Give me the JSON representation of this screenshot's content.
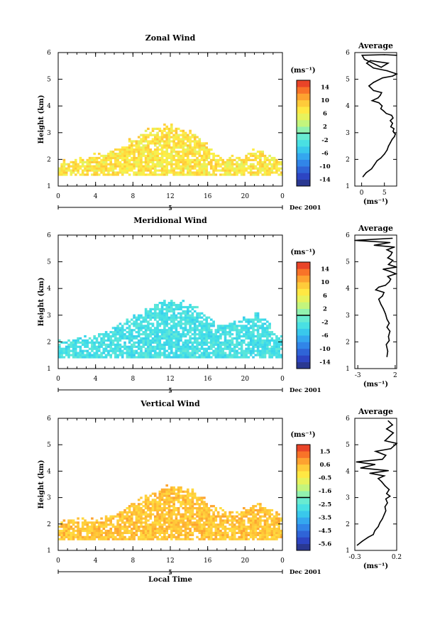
{
  "chart_data": [
    {
      "type": "heatmap",
      "title": "Zonal Wind",
      "ylabel": "Height (km)",
      "xlabel": "",
      "xlim": [
        0,
        24
      ],
      "ylim": [
        1,
        6
      ],
      "x_ticks": [
        "0",
        "4",
        "8",
        "12",
        "16",
        "20",
        "0"
      ],
      "y_ticks": [
        "1",
        "2",
        "3",
        "4",
        "5",
        "6"
      ],
      "date_ticks": [
        "5"
      ],
      "date_label": "Dec 2001",
      "colorbar": {
        "unit": "(ms⁻¹)",
        "min": -16,
        "max": 16,
        "labels": [
          "14",
          "10",
          "6",
          "2",
          "-2",
          "-6",
          "-10",
          "-14"
        ]
      },
      "field_summary": {
        "bulk_value": 7,
        "min": 2,
        "max": 14
      },
      "profile": {
        "title": "Average",
        "xlabel": "(ms⁻¹)",
        "xlim": [
          -1.5,
          7.7
        ],
        "x_ticks": [
          "0",
          "5"
        ],
        "y_ticks": [
          "1",
          "2",
          "3",
          "4",
          "5",
          "6"
        ],
        "points": [
          [
            0.3,
            1.35
          ],
          [
            1.0,
            1.5
          ],
          [
            2.2,
            1.65
          ],
          [
            2.8,
            1.8
          ],
          [
            3.4,
            1.95
          ],
          [
            4.2,
            2.05
          ],
          [
            5.0,
            2.2
          ],
          [
            5.6,
            2.35
          ],
          [
            5.9,
            2.5
          ],
          [
            6.3,
            2.62
          ],
          [
            6.7,
            2.75
          ],
          [
            7.2,
            2.85
          ],
          [
            7.4,
            2.95
          ],
          [
            6.9,
            3.05
          ],
          [
            7.1,
            3.15
          ],
          [
            6.4,
            3.22
          ],
          [
            6.8,
            3.35
          ],
          [
            6.3,
            3.45
          ],
          [
            6.9,
            3.55
          ],
          [
            6.6,
            3.65
          ],
          [
            5.4,
            3.72
          ],
          [
            4.8,
            3.82
          ],
          [
            4.2,
            3.9
          ],
          [
            4.5,
            4.0
          ],
          [
            3.8,
            4.12
          ],
          [
            2.3,
            4.2
          ],
          [
            3.6,
            4.3
          ],
          [
            4.1,
            4.4
          ],
          [
            4.4,
            4.5
          ],
          [
            2.6,
            4.58
          ],
          [
            1.6,
            4.75
          ],
          [
            2.6,
            4.88
          ],
          [
            4.6,
            5.05
          ],
          [
            6.8,
            5.12
          ],
          [
            7.7,
            5.2
          ],
          [
            5.6,
            5.32
          ],
          [
            2.6,
            5.42
          ],
          [
            1.1,
            5.6
          ],
          [
            1.9,
            5.7
          ],
          [
            5.8,
            5.6
          ],
          [
            4.3,
            5.45
          ],
          [
            0.6,
            5.75
          ],
          [
            0.1,
            5.9
          ],
          [
            5.0,
            5.92
          ],
          [
            7.7,
            5.9
          ]
        ]
      }
    },
    {
      "type": "heatmap",
      "title": "Meridional Wind",
      "ylabel": "Height (km)",
      "xlabel": "",
      "xlim": [
        0,
        24
      ],
      "ylim": [
        1,
        6
      ],
      "x_ticks": [
        "0",
        "4",
        "8",
        "12",
        "16",
        "20",
        "0"
      ],
      "y_ticks": [
        "1",
        "2",
        "3",
        "4",
        "5",
        "6"
      ],
      "date_ticks": [
        "5"
      ],
      "date_label": "Dec 2001",
      "colorbar": {
        "unit": "(ms⁻¹)",
        "min": -16,
        "max": 16,
        "labels": [
          "14",
          "10",
          "6",
          "2",
          "-2",
          "-6",
          "-10",
          "-14"
        ]
      },
      "field_summary": {
        "bulk_value": -3,
        "min": -6,
        "max": 2
      },
      "profile": {
        "title": "Average",
        "xlabel": "(ms⁻¹)",
        "xlim": [
          -3.4,
          2.2
        ],
        "x_ticks": [
          "-3",
          "2"
        ],
        "y_ticks": [
          "1",
          "2",
          "3",
          "4",
          "5",
          "6"
        ],
        "points": [
          [
            0.9,
            1.45
          ],
          [
            1.0,
            1.65
          ],
          [
            0.8,
            1.9
          ],
          [
            1.2,
            2.05
          ],
          [
            1.1,
            2.2
          ],
          [
            1.3,
            2.4
          ],
          [
            0.9,
            2.55
          ],
          [
            1.2,
            2.7
          ],
          [
            0.9,
            2.85
          ],
          [
            0.7,
            3.05
          ],
          [
            0.4,
            3.25
          ],
          [
            0.1,
            3.4
          ],
          [
            -0.2,
            3.6
          ],
          [
            0.3,
            3.72
          ],
          [
            0.5,
            3.85
          ],
          [
            -0.6,
            3.95
          ],
          [
            -0.2,
            4.05
          ],
          [
            0.7,
            4.12
          ],
          [
            1.2,
            4.25
          ],
          [
            1.4,
            4.35
          ],
          [
            1.0,
            4.45
          ],
          [
            2.1,
            4.55
          ],
          [
            1.2,
            4.65
          ],
          [
            0.4,
            4.72
          ],
          [
            2.2,
            4.8
          ],
          [
            1.1,
            4.9
          ],
          [
            1.7,
            5.05
          ],
          [
            1.0,
            5.15
          ],
          [
            1.4,
            5.25
          ],
          [
            1.6,
            5.35
          ],
          [
            0.9,
            5.45
          ],
          [
            1.9,
            5.55
          ],
          [
            -0.8,
            5.62
          ],
          [
            1.3,
            5.72
          ],
          [
            -3.4,
            5.8
          ],
          [
            1.6,
            5.88
          ]
        ]
      }
    },
    {
      "type": "heatmap",
      "title": "Vertical Wind",
      "ylabel": "Height (km)",
      "xlabel": "Local Time",
      "xlim": [
        0,
        24
      ],
      "ylim": [
        1,
        6
      ],
      "x_ticks": [
        "0",
        "4",
        "8",
        "12",
        "16",
        "20",
        "0"
      ],
      "y_ticks": [
        "1",
        "2",
        "3",
        "4",
        "5",
        "6"
      ],
      "date_ticks": [
        "5"
      ],
      "date_label": "Dec 2001",
      "colorbar": {
        "unit": "(ms⁻¹)",
        "min": -6.1,
        "max": 2.1,
        "labels": [
          "1.5",
          "0.6",
          "-0.5",
          "-1.6",
          "-2.5",
          "-3.5",
          "-4.5",
          "-5.6"
        ]
      },
      "field_summary": {
        "bulk_value": 0.4,
        "min": -0.5,
        "max": 1.5
      },
      "profile": {
        "title": "Average",
        "xlabel": "(ms⁻¹)",
        "xlim": [
          -0.3,
          0.2
        ],
        "x_ticks": [
          "-0.3",
          "0.2"
        ],
        "y_ticks": [
          "1",
          "2",
          "3",
          "4",
          "5",
          "6"
        ],
        "points": [
          [
            -0.27,
            1.2
          ],
          [
            -0.21,
            1.35
          ],
          [
            -0.14,
            1.5
          ],
          [
            -0.08,
            1.6
          ],
          [
            -0.06,
            1.75
          ],
          [
            -0.02,
            1.9
          ],
          [
            0.0,
            2.05
          ],
          [
            0.03,
            2.2
          ],
          [
            0.05,
            2.35
          ],
          [
            0.07,
            2.5
          ],
          [
            0.06,
            2.65
          ],
          [
            0.09,
            2.8
          ],
          [
            0.07,
            2.95
          ],
          [
            0.12,
            3.05
          ],
          [
            0.08,
            3.15
          ],
          [
            0.11,
            3.3
          ],
          [
            0.06,
            3.45
          ],
          [
            0.02,
            3.6
          ],
          [
            -0.02,
            3.72
          ],
          [
            0.05,
            3.82
          ],
          [
            -0.12,
            3.92
          ],
          [
            0.1,
            4.02
          ],
          [
            -0.23,
            4.12
          ],
          [
            -0.06,
            4.25
          ],
          [
            -0.28,
            4.35
          ],
          [
            0.03,
            4.45
          ],
          [
            0.07,
            4.6
          ],
          [
            -0.05,
            4.75
          ],
          [
            0.13,
            4.85
          ],
          [
            0.2,
            5.05
          ],
          [
            0.06,
            5.15
          ],
          [
            0.11,
            5.3
          ],
          [
            0.16,
            5.45
          ],
          [
            0.08,
            5.6
          ],
          [
            0.15,
            5.75
          ],
          [
            0.1,
            5.9
          ]
        ]
      }
    }
  ]
}
